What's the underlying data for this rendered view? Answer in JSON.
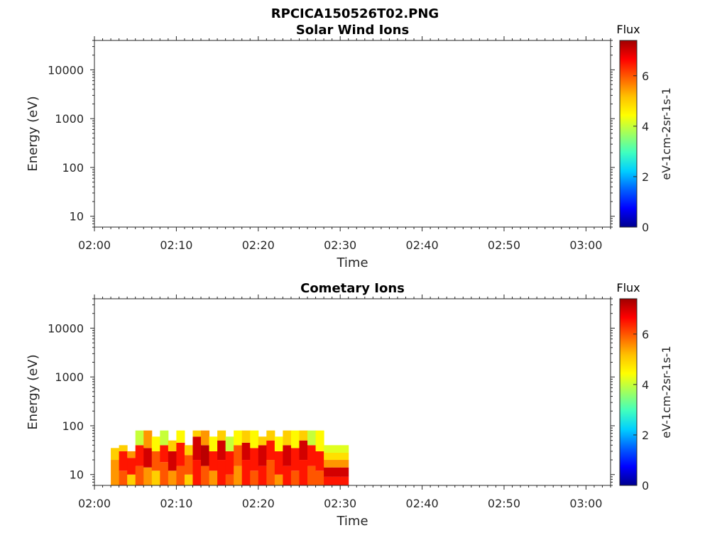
{
  "figure": {
    "title": "RPCICA150526T02.PNG"
  },
  "colormap": [
    "#00008f",
    "#0000ff",
    "#0060ff",
    "#00cfff",
    "#40ffbf",
    "#9fff60",
    "#ffff00",
    "#ffc000",
    "#ff6000",
    "#ff0000",
    "#a00000"
  ],
  "chart_data": [
    {
      "type": "heatmap",
      "title": "Solar Wind Ions",
      "xlabel": "Time",
      "ylabel": "Energy (eV)",
      "x_ticks": [
        "02:00",
        "02:10",
        "02:20",
        "02:30",
        "02:40",
        "02:50",
        "03:00"
      ],
      "xlim": [
        "02:00",
        "03:03"
      ],
      "y_ticks": [
        "10",
        "100",
        "1000",
        "10000"
      ],
      "y_scale": "log",
      "ylim": [
        6,
        40000
      ],
      "colorbar": {
        "title": "Flux",
        "label": "eV-1cm-2sr-1s-1",
        "ticks": [
          "0",
          "2",
          "4",
          "6"
        ],
        "range": [
          0,
          7.4
        ]
      },
      "cells": []
    },
    {
      "type": "heatmap",
      "title": "Cometary Ions",
      "xlabel": "Time",
      "ylabel": "Energy (eV)",
      "x_ticks": [
        "02:00",
        "02:10",
        "02:20",
        "02:30",
        "02:40",
        "02:50",
        "03:00"
      ],
      "xlim": [
        "02:00",
        "03:03"
      ],
      "y_ticks": [
        "10",
        "100",
        "1000",
        "10000"
      ],
      "y_scale": "log",
      "ylim": [
        6,
        40000
      ],
      "colorbar": {
        "title": "Flux",
        "label": "eV-1cm-2sr-1s-1",
        "ticks": [
          "0",
          "2",
          "4",
          "6"
        ],
        "range": [
          0,
          7.4
        ]
      },
      "cells": [
        [
          "02:02",
          6,
          20,
          5.5
        ],
        [
          "02:02",
          20,
          35,
          5.0
        ],
        [
          "02:03",
          6,
          12,
          6.0
        ],
        [
          "02:03",
          12,
          30,
          6.5
        ],
        [
          "02:03",
          30,
          40,
          5.0
        ],
        [
          "02:04",
          6,
          10,
          5.0
        ],
        [
          "02:04",
          10,
          22,
          6.5
        ],
        [
          "02:04",
          22,
          30,
          5.5
        ],
        [
          "02:05",
          6,
          15,
          6.0
        ],
        [
          "02:05",
          15,
          40,
          6.5
        ],
        [
          "02:05",
          40,
          80,
          4.0
        ],
        [
          "02:06",
          6,
          14,
          5.5
        ],
        [
          "02:06",
          14,
          35,
          7.0
        ],
        [
          "02:06",
          35,
          80,
          5.5
        ],
        [
          "02:07",
          6,
          12,
          5.0
        ],
        [
          "02:07",
          12,
          30,
          6.0
        ],
        [
          "02:07",
          30,
          60,
          4.5
        ],
        [
          "02:08",
          6,
          18,
          6.0
        ],
        [
          "02:08",
          18,
          40,
          6.5
        ],
        [
          "02:08",
          40,
          80,
          4.0
        ],
        [
          "02:09",
          6,
          12,
          5.5
        ],
        [
          "02:09",
          12,
          30,
          7.0
        ],
        [
          "02:09",
          30,
          50,
          5.0
        ],
        [
          "02:10",
          6,
          15,
          6.0
        ],
        [
          "02:10",
          15,
          45,
          6.5
        ],
        [
          "02:10",
          45,
          80,
          4.5
        ],
        [
          "02:11",
          6,
          10,
          5.0
        ],
        [
          "02:11",
          10,
          25,
          6.0
        ],
        [
          "02:11",
          25,
          40,
          5.0
        ],
        [
          "02:12",
          6,
          20,
          6.5
        ],
        [
          "02:12",
          20,
          60,
          7.0
        ],
        [
          "02:12",
          60,
          80,
          5.0
        ],
        [
          "02:13",
          6,
          15,
          6.0
        ],
        [
          "02:13",
          15,
          40,
          7.2
        ],
        [
          "02:13",
          40,
          80,
          5.5
        ],
        [
          "02:14",
          6,
          12,
          5.5
        ],
        [
          "02:14",
          12,
          30,
          6.5
        ],
        [
          "02:14",
          30,
          60,
          4.5
        ],
        [
          "02:15",
          6,
          20,
          6.5
        ],
        [
          "02:15",
          20,
          50,
          7.0
        ],
        [
          "02:15",
          50,
          80,
          5.0
        ],
        [
          "02:16",
          6,
          10,
          6.0
        ],
        [
          "02:16",
          10,
          30,
          6.5
        ],
        [
          "02:16",
          30,
          60,
          4.0
        ],
        [
          "02:17",
          6,
          15,
          5.5
        ],
        [
          "02:17",
          15,
          40,
          6.0
        ],
        [
          "02:17",
          40,
          80,
          4.5
        ],
        [
          "02:18",
          6,
          20,
          6.5
        ],
        [
          "02:18",
          20,
          45,
          7.0
        ],
        [
          "02:18",
          45,
          80,
          5.0
        ],
        [
          "02:19",
          6,
          12,
          6.0
        ],
        [
          "02:19",
          12,
          35,
          6.5
        ],
        [
          "02:19",
          35,
          80,
          4.5
        ],
        [
          "02:20",
          6,
          15,
          6.5
        ],
        [
          "02:20",
          15,
          40,
          7.0
        ],
        [
          "02:20",
          40,
          60,
          5.0
        ],
        [
          "02:21",
          6,
          20,
          6.0
        ],
        [
          "02:21",
          20,
          50,
          6.5
        ],
        [
          "02:21",
          50,
          80,
          5.0
        ],
        [
          "02:22",
          6,
          10,
          5.5
        ],
        [
          "02:22",
          10,
          30,
          6.5
        ],
        [
          "02:22",
          30,
          60,
          4.5
        ],
        [
          "02:23",
          6,
          15,
          6.5
        ],
        [
          "02:23",
          15,
          40,
          7.0
        ],
        [
          "02:23",
          40,
          80,
          5.0
        ],
        [
          "02:24",
          6,
          12,
          6.0
        ],
        [
          "02:24",
          12,
          35,
          6.5
        ],
        [
          "02:24",
          35,
          80,
          4.5
        ],
        [
          "02:25",
          6,
          20,
          6.5
        ],
        [
          "02:25",
          20,
          50,
          7.0
        ],
        [
          "02:25",
          50,
          80,
          5.0
        ],
        [
          "02:26",
          6,
          15,
          6.0
        ],
        [
          "02:26",
          15,
          40,
          6.5
        ],
        [
          "02:26",
          40,
          80,
          4.0
        ],
        [
          "02:27",
          6,
          12,
          6.0
        ],
        [
          "02:27",
          12,
          30,
          6.5
        ],
        [
          "02:27",
          30,
          80,
          4.5
        ],
        [
          "02:28",
          6,
          9,
          6.5
        ],
        [
          "02:28",
          9,
          14,
          7.0
        ],
        [
          "02:28",
          14,
          20,
          5.5
        ],
        [
          "02:28",
          20,
          28,
          4.8
        ],
        [
          "02:28",
          28,
          40,
          4.2
        ],
        [
          "02:29",
          6,
          9,
          6.5
        ],
        [
          "02:29",
          9,
          14,
          7.0
        ],
        [
          "02:29",
          14,
          20,
          5.5
        ],
        [
          "02:29",
          20,
          28,
          4.8
        ],
        [
          "02:29",
          28,
          40,
          4.2
        ],
        [
          "02:30",
          6,
          9,
          6.5
        ],
        [
          "02:30",
          9,
          14,
          7.0
        ],
        [
          "02:30",
          14,
          20,
          5.5
        ],
        [
          "02:30",
          20,
          28,
          4.8
        ],
        [
          "02:30",
          28,
          40,
          4.2
        ]
      ]
    }
  ]
}
